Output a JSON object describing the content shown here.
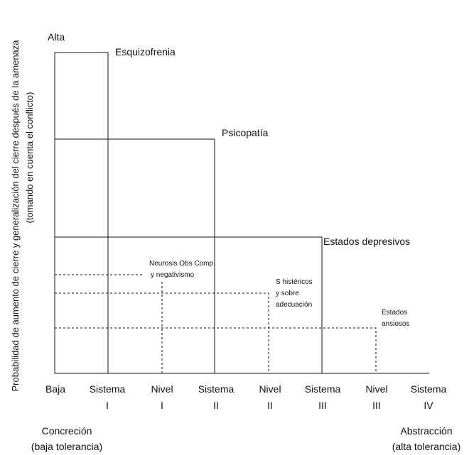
{
  "y_axis": {
    "top_label": "Alta",
    "title_line1": "Probabilidad de aumento de cierre y generalización del cierre después de la amenaza",
    "title_line2": "(tomando en cuenta el conflicto)"
  },
  "x_axis": {
    "ticks": [
      {
        "line1": "Baja",
        "line2": ""
      },
      {
        "line1": "Sistema",
        "line2": "I"
      },
      {
        "line1": "Nivel",
        "line2": "I"
      },
      {
        "line1": "Sistema",
        "line2": "II"
      },
      {
        "line1": "Nivel",
        "line2": "II"
      },
      {
        "line1": "Sistema",
        "line2": "III"
      },
      {
        "line1": "Nivel",
        "line2": "III"
      },
      {
        "line1": "Sistema",
        "line2": "IV"
      }
    ],
    "left_end": {
      "line1": "Concreción",
      "line2": "(baja tolerancia)"
    },
    "right_end": {
      "line1": "Abstracción",
      "line2": "(alta tolerancia)"
    }
  },
  "regions": {
    "esquizofrenia": "Esquizofrenia",
    "psicopatia": "Psicopatía",
    "estados_depresivos": "Estados depresivos",
    "neurosis_line1": "Neurosis Obs Comp",
    "neurosis_line2": "y negativismo",
    "histericos_line1": "S histéricos",
    "histericos_line2": "y sobre",
    "histericos_line3": "adecuación",
    "ansiosos_line1": "Estados",
    "ansiosos_line2": "ansiosos"
  }
}
